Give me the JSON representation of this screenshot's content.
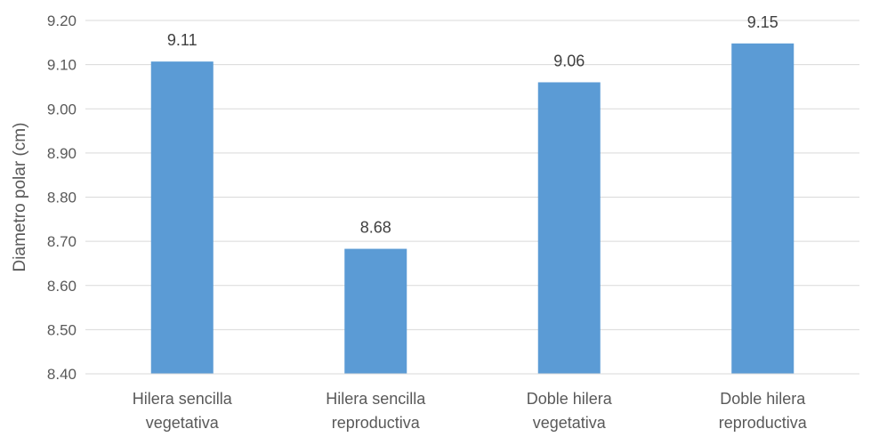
{
  "chart_data": {
    "type": "bar",
    "title": "",
    "xlabel": "",
    "ylabel": "Diametro polar (cm)",
    "ylim": [
      8.4,
      9.2
    ],
    "yticks": [
      "8.40",
      "8.50",
      "8.60",
      "8.70",
      "8.80",
      "8.90",
      "9.00",
      "9.10",
      "9.20"
    ],
    "categories": [
      [
        "Hilera sencilla",
        "vegetativa"
      ],
      [
        "Hilera sencilla",
        "reproductiva"
      ],
      [
        "Doble hilera",
        "vegetativa"
      ],
      [
        "Doble hilera",
        "reproductiva"
      ]
    ],
    "values": [
      9.107,
      8.683,
      9.06,
      9.148
    ],
    "data_labels": [
      "9.11",
      "8.68",
      "9.06",
      "9.15"
    ],
    "bar_color": "#5B9BD5",
    "grid": true,
    "legend": "none"
  }
}
